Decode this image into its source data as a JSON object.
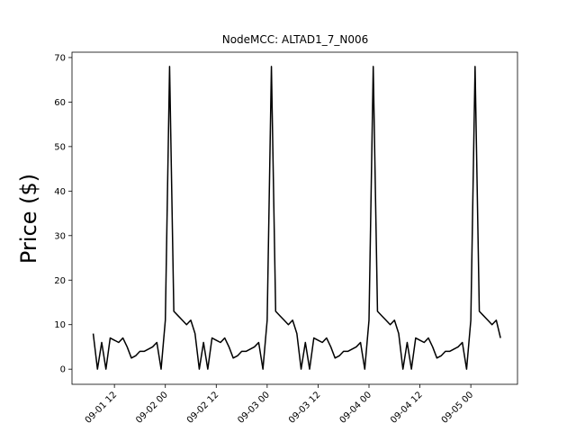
{
  "chart_data": {
    "type": "line",
    "title": "NodeMCC: ALTAD1_7_N006",
    "y_label": "Price ($)",
    "color": "#000000",
    "x": [
      "09-01 07",
      "09-01 08",
      "09-01 09",
      "09-01 10",
      "09-01 11",
      "09-01 12",
      "09-01 13",
      "09-01 14",
      "09-01 15",
      "09-01 16",
      "09-01 17",
      "09-01 18",
      "09-01 19",
      "09-01 20",
      "09-01 21",
      "09-01 22",
      "09-01 23",
      "09-02 00",
      "09-02 01",
      "09-02 02",
      "09-02 03",
      "09-02 04",
      "09-02 05",
      "09-02 06",
      "09-02 07",
      "09-02 08",
      "09-02 09",
      "09-02 10",
      "09-02 11",
      "09-02 12",
      "09-02 13",
      "09-02 14",
      "09-02 15",
      "09-02 16",
      "09-02 17",
      "09-02 18",
      "09-02 19",
      "09-02 20",
      "09-02 21",
      "09-02 22",
      "09-02 23",
      "09-03 00",
      "09-03 01",
      "09-03 02",
      "09-03 03",
      "09-03 04",
      "09-03 05",
      "09-03 06",
      "09-03 07",
      "09-03 08",
      "09-03 09",
      "09-03 10",
      "09-03 11",
      "09-03 12",
      "09-03 13",
      "09-03 14",
      "09-03 15",
      "09-03 16",
      "09-03 17",
      "09-03 18",
      "09-03 19",
      "09-03 20",
      "09-03 21",
      "09-03 22",
      "09-03 23",
      "09-04 00",
      "09-04 01",
      "09-04 02",
      "09-04 03",
      "09-04 04",
      "09-04 05",
      "09-04 06",
      "09-04 07",
      "09-04 08",
      "09-04 09",
      "09-04 10",
      "09-04 11",
      "09-04 12",
      "09-04 13",
      "09-04 14",
      "09-04 15",
      "09-04 16",
      "09-04 17",
      "09-04 18",
      "09-04 19",
      "09-04 20",
      "09-04 21",
      "09-04 22",
      "09-04 23",
      "09-05 00",
      "09-05 01",
      "09-05 02",
      "09-05 03",
      "09-05 04",
      "09-05 05",
      "09-05 06",
      "09-05 07"
    ],
    "values": [
      8,
      0,
      6,
      0,
      7,
      6.5,
      6,
      7,
      5,
      2.5,
      3,
      4,
      4,
      4.5,
      5,
      6,
      0,
      11,
      68,
      13,
      12,
      11,
      10,
      11,
      8,
      0,
      6,
      0,
      7,
      6.5,
      6,
      7,
      5,
      2.5,
      3,
      4,
      4,
      4.5,
      5,
      6,
      0,
      11,
      68,
      13,
      12,
      11,
      10,
      11,
      8,
      0,
      6,
      0,
      7,
      6.5,
      6,
      7,
      5,
      2.5,
      3,
      4,
      4,
      4.5,
      5,
      6,
      0,
      11,
      68,
      13,
      12,
      11,
      10,
      11,
      8,
      0,
      6,
      0,
      7,
      6.5,
      6,
      7,
      5,
      2.5,
      3,
      4,
      4,
      4.5,
      5,
      6,
      0,
      11,
      68,
      13,
      12,
      11,
      10,
      11,
      7
    ],
    "xlim": [
      "09-01 02",
      "09-05 11"
    ],
    "xticks": [
      "09-01 12",
      "09-02 00",
      "09-02 12",
      "09-03 00",
      "09-03 12",
      "09-04 00",
      "09-04 12",
      "09-05 00"
    ],
    "ylim": [
      -3.4,
      71.2
    ],
    "yticks": [
      0,
      10,
      20,
      30,
      40,
      50,
      60,
      70
    ]
  }
}
